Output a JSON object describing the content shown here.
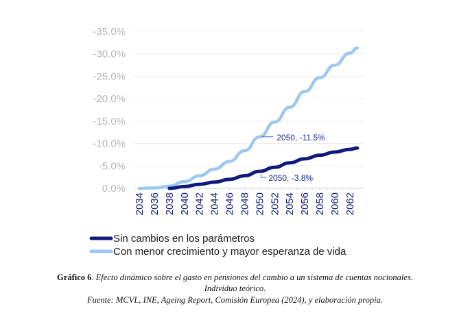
{
  "chart_data": {
    "type": "line",
    "title": "",
    "xlabel": "",
    "ylabel": "",
    "x": [
      2034,
      2036,
      2038,
      2040,
      2042,
      2044,
      2046,
      2048,
      2050,
      2052,
      2054,
      2056,
      2058,
      2060,
      2062,
      2063
    ],
    "x_tick_labels": [
      "2034",
      "2036",
      "2038",
      "2040",
      "2042",
      "2044",
      "2046",
      "2048",
      "2050",
      "2052",
      "2054",
      "2056",
      "2058",
      "2060",
      "2062"
    ],
    "ylim": [
      0,
      -35
    ],
    "y_reversed": true,
    "y_ticks": [
      0,
      -5,
      -10,
      -15,
      -20,
      -25,
      -30,
      -35
    ],
    "y_tick_labels": [
      "0.0%",
      "-5.0%",
      "-10.0%",
      "-15.0%",
      "-20.0%",
      "-25.0%",
      "-30.0%",
      "-35.0%"
    ],
    "grid": "horizontal",
    "legend_position": "bottom",
    "series": [
      {
        "name": "Sin cambios en los parámetros",
        "color": "#0f1a7a",
        "values": [
          0,
          0,
          0,
          -0.4,
          -0.9,
          -1.4,
          -2.0,
          -2.8,
          -3.8,
          -4.7,
          -5.7,
          -6.6,
          -7.4,
          -8.1,
          -8.7,
          -9.0
        ]
      },
      {
        "name": "Con menor crecimiento y mayor esperanza de vida",
        "color": "#9cc7f2",
        "values": [
          0,
          -0.1,
          -0.5,
          -1.5,
          -2.8,
          -4.3,
          -6.0,
          -8.4,
          -11.5,
          -14.8,
          -18.1,
          -21.6,
          -24.7,
          -27.5,
          -30.2,
          -31.3
        ]
      }
    ],
    "annotations": [
      {
        "series": 1,
        "x": 2050,
        "y": -11.5,
        "text": "2050, -11.5%"
      },
      {
        "series": 0,
        "x": 2050,
        "y": -3.8,
        "text": "2050, -3.8%"
      }
    ]
  },
  "caption": {
    "label": "Gráfico 6",
    "sep": ". ",
    "text": "Efecto dinámico sobre el gasto en pensiones del cambio a un sistema de cuentas nocionales.",
    "line2": "Individuo teórico.",
    "source": "Fuente: MCVL, INE, Ageing Report, Comisión Europea (2024), y elaboración propia."
  }
}
